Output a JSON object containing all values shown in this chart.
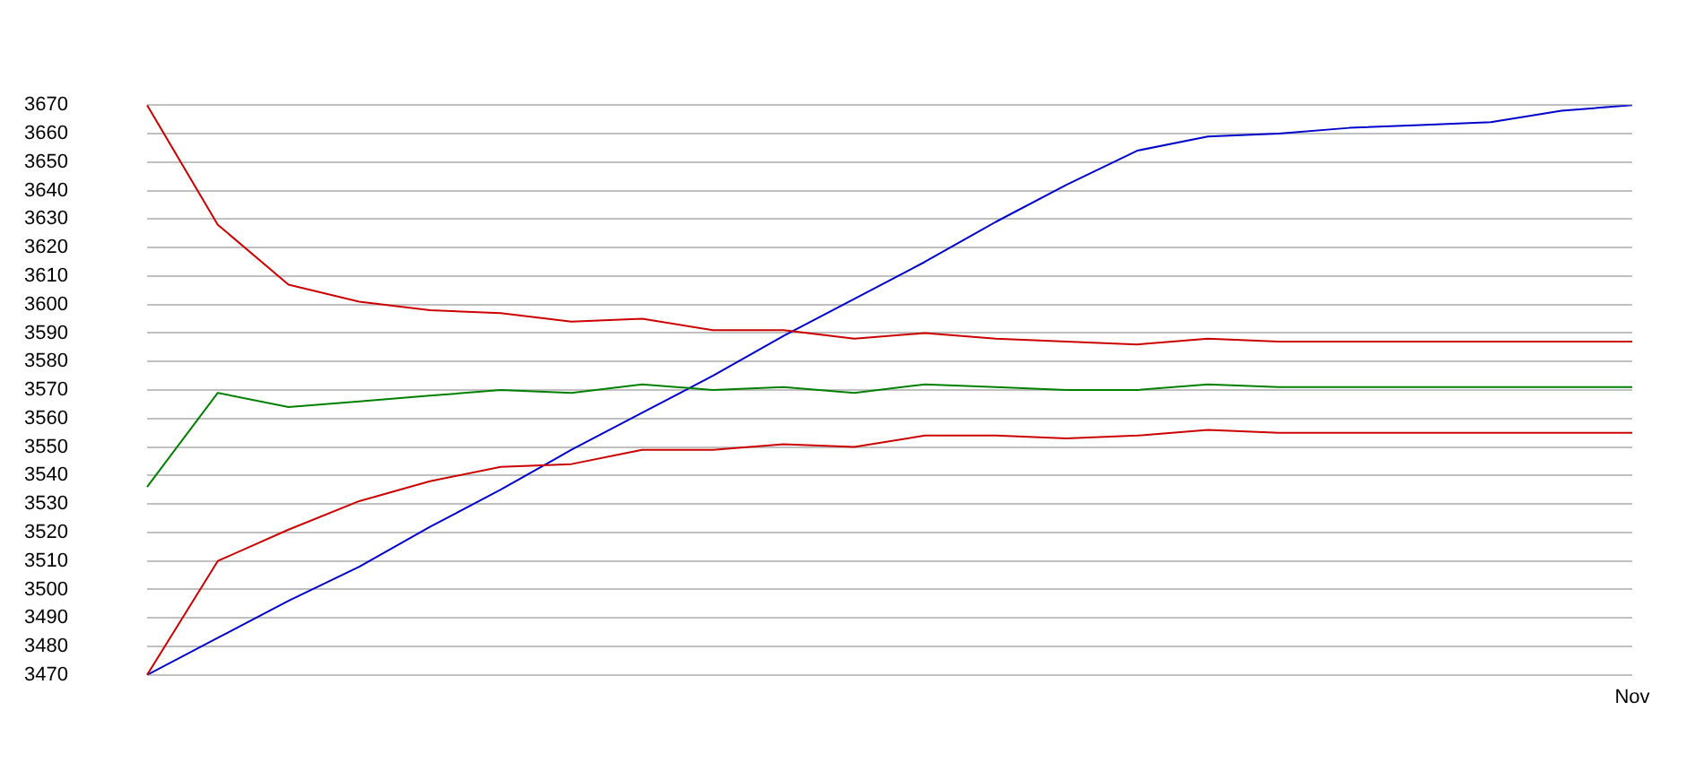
{
  "chart_data": {
    "type": "line",
    "categories": [
      null,
      null,
      null,
      null,
      null,
      null,
      null,
      null,
      null,
      null,
      null,
      null,
      null,
      null,
      null,
      null,
      null,
      null,
      null,
      null,
      null,
      "Nov"
    ],
    "series": [
      {
        "color": "#cc0000",
        "values": [
          3670,
          3628,
          3607,
          3601,
          3598,
          3597,
          3594,
          3595,
          3591,
          3591,
          3588,
          3590,
          3588,
          3587,
          3586,
          3588,
          3587,
          3587,
          3587,
          3587,
          3587,
          3587
        ]
      },
      {
        "color": "#008000",
        "values": [
          3536,
          3569,
          3564,
          3566,
          3568,
          3570,
          3569,
          3572,
          3570,
          3571,
          3569,
          3572,
          3571,
          3570,
          3570,
          3572,
          3571,
          3571,
          3571,
          3571,
          3571,
          3571
        ]
      },
      {
        "color": "#cc0000",
        "values": [
          3470,
          3510,
          3521,
          3531,
          3538,
          3543,
          3544,
          3549,
          3549,
          3551,
          3550,
          3554,
          3554,
          3553,
          3554,
          3556,
          3555,
          3555,
          3555,
          3555,
          3555,
          3555
        ]
      },
      {
        "color": "#0000cc",
        "values": [
          3470,
          3483,
          3496,
          3508,
          3522,
          3535,
          3549,
          3562,
          3575,
          3589,
          3602,
          3615,
          3629,
          3642,
          3654,
          3659,
          3660,
          3662,
          3663,
          3664,
          3668,
          3670
        ]
      }
    ],
    "ylim": [
      3470,
      3670
    ],
    "yticks": [
      3470,
      3480,
      3490,
      3500,
      3510,
      3520,
      3530,
      3540,
      3550,
      3560,
      3570,
      3580,
      3590,
      3600,
      3610,
      3620,
      3630,
      3640,
      3650,
      3660,
      3670
    ],
    "grid": "y",
    "legend": false,
    "marker": "none",
    "line_style": "solid"
  }
}
